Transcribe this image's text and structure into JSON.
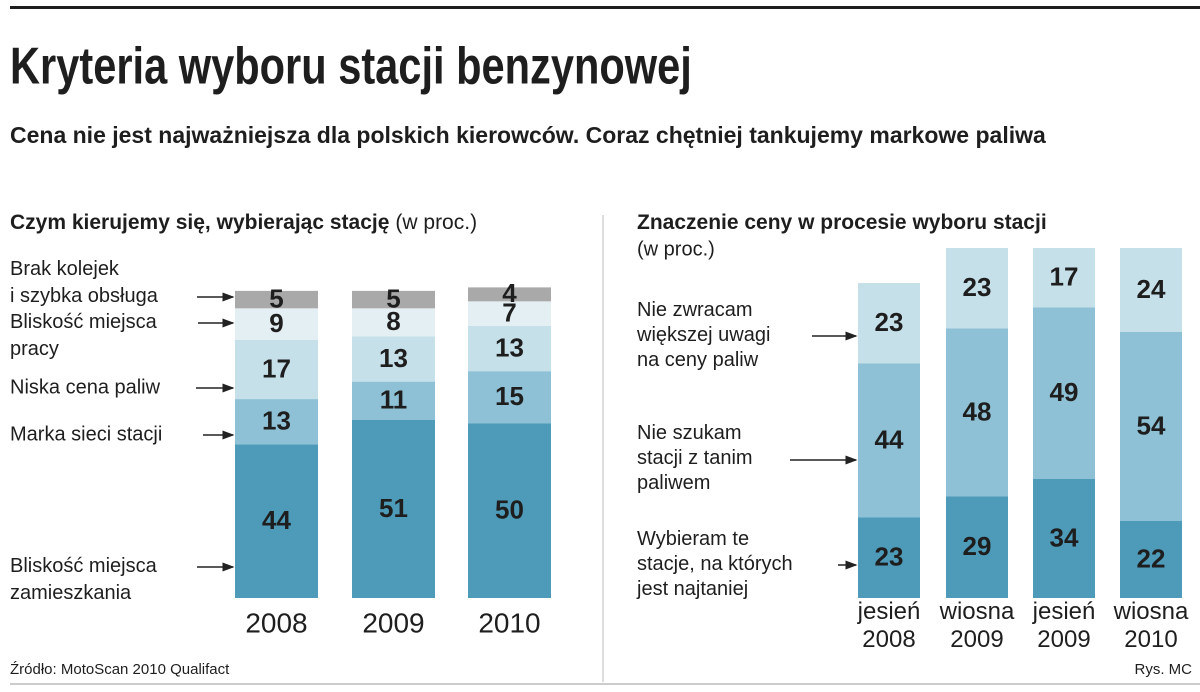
{
  "title": "Kryteria wyboru stacji benzynowej",
  "subtitle": "Cena nie jest najważniejsza dla polskich kierowców. Coraz chętniej tankujemy markowe paliwa",
  "source": "Źródło: MotoScan 2010 Qualifact",
  "credit": "Rys. MC",
  "chart_data": [
    {
      "type": "bar",
      "stacked": true,
      "title": "Czym kierujemy się, wybierając stację",
      "unit_note": "(w proc.)",
      "categories": [
        "2008",
        "2009",
        "2010"
      ],
      "ylim": [
        0,
        100
      ],
      "series": [
        {
          "name": "Bliskość miejsca\nzamieszkania",
          "color": "#4d9bb8",
          "values": [
            44,
            51,
            50
          ]
        },
        {
          "name": "Marka sieci stacji",
          "color": "#8ec1d6",
          "values": [
            13,
            11,
            15
          ]
        },
        {
          "name": "Niska cena paliw",
          "color": "#c6e0ea",
          "values": [
            17,
            13,
            13
          ]
        },
        {
          "name": "Bliskość miejsca\npracy",
          "color": "#e4eff3",
          "values": [
            9,
            8,
            7
          ]
        },
        {
          "name": "Brak kolejek\ni szybka obsługa",
          "color": "#a9a9a9",
          "values": [
            5,
            5,
            4
          ]
        }
      ]
    },
    {
      "type": "bar",
      "stacked": true,
      "title": "Znaczenie ceny w procesie wyboru stacji",
      "unit_note": "(w proc.)",
      "categories": [
        "jesień\n2008",
        "wiosna\n2009",
        "jesień\n2009",
        "wiosna\n2010"
      ],
      "ylim": [
        0,
        100
      ],
      "series": [
        {
          "name": "Wybieram te\nstacje, na których\njest najtaniej",
          "color": "#4d9bb8",
          "values": [
            23,
            29,
            34,
            22
          ]
        },
        {
          "name": "Nie szukam\nstacji z tanim\npaliwem",
          "color": "#8ec1d6",
          "values": [
            44,
            48,
            49,
            54
          ]
        },
        {
          "name": "Nie zwracam\nwiększej uwagi\nna ceny paliw",
          "color": "#c6e0ea",
          "values": [
            23,
            23,
            17,
            24
          ]
        }
      ]
    }
  ]
}
